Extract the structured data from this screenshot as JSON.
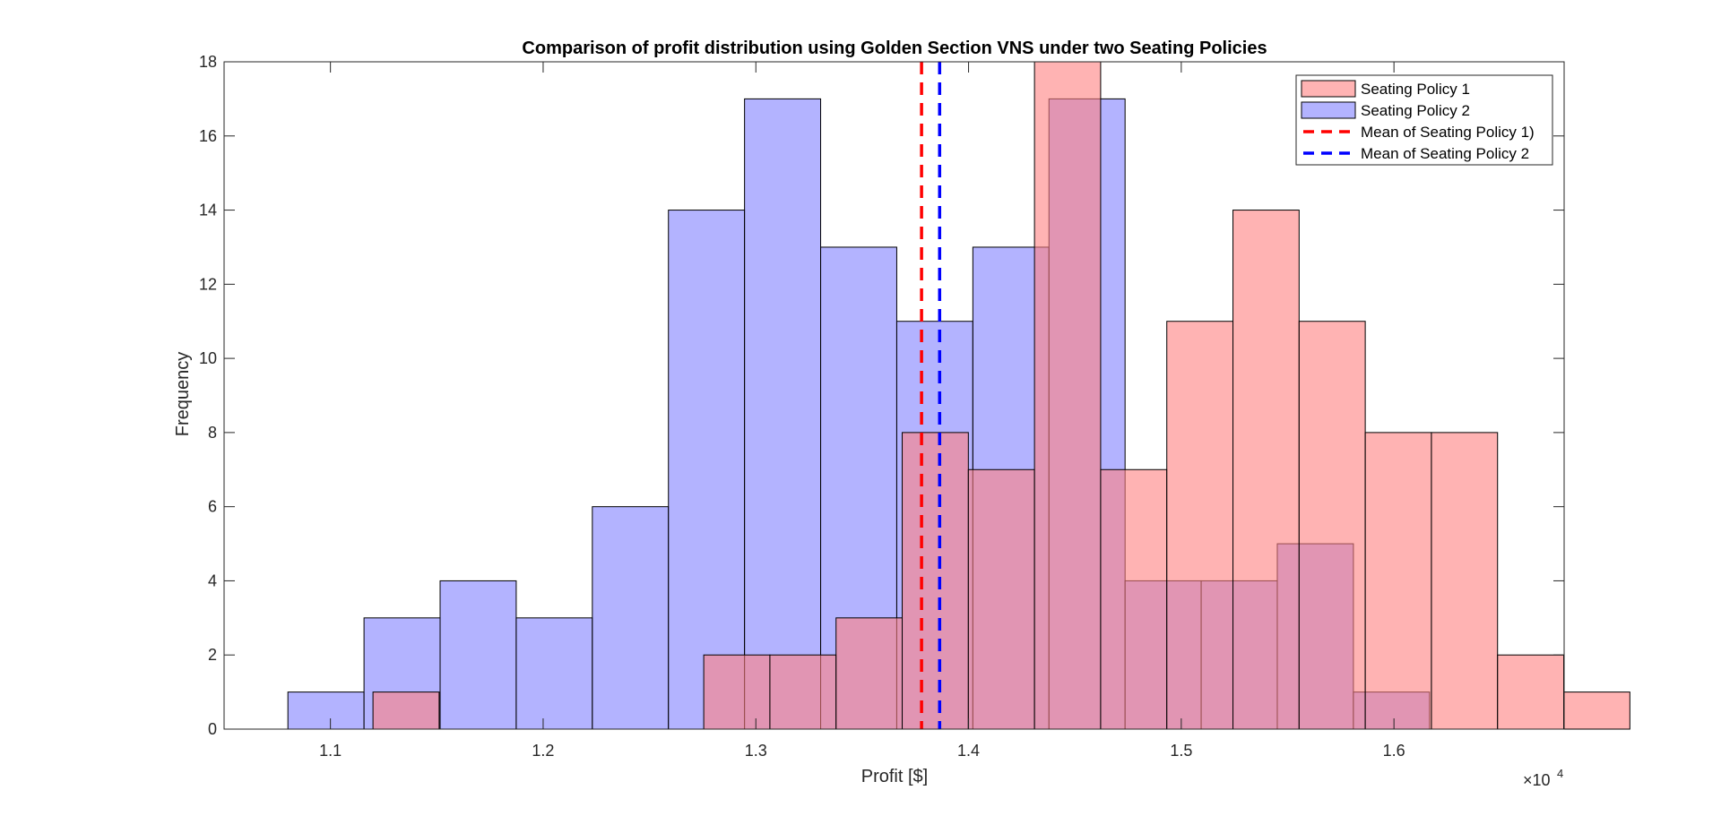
{
  "chart_data": {
    "type": "histogram",
    "title": "Comparison of profit distribution using Golden Section VNS under two Seating Policies",
    "xlabel": "Profit [$]",
    "ylabel": "Frequency",
    "x_exponent_label": "×10",
    "x_exponent_power": "4",
    "xlim": [
      1.05,
      1.68
    ],
    "ylim": [
      0,
      18
    ],
    "xticks": [
      1.1,
      1.2,
      1.3,
      1.4,
      1.5,
      1.6
    ],
    "yticks": [
      0,
      2,
      4,
      6,
      8,
      10,
      12,
      14,
      16,
      18
    ],
    "grid": false,
    "legend_position": "top-right",
    "series": [
      {
        "name": "Seating Policy 1",
        "color": "#ff8080",
        "bin_start": 1.12,
        "bin_width": 0.0311,
        "counts": [
          1,
          0,
          0,
          0,
          0,
          2,
          2,
          3,
          8,
          7,
          18,
          7,
          11,
          14,
          11,
          8,
          8,
          2,
          1,
          0
        ],
        "mean": 1.3779
      },
      {
        "name": "Seating Policy 2",
        "color": "#8080ff",
        "bin_start": 1.08,
        "bin_width": 0.03578,
        "counts": [
          1,
          3,
          4,
          3,
          6,
          14,
          17,
          13,
          11,
          13,
          17,
          4,
          4,
          5,
          1
        ],
        "mean": 1.3864
      }
    ],
    "legend": [
      "Seating Policy 1",
      "Seating Policy 2",
      "Mean of Seating Policy 1)",
      "Mean of Seating Policy 2"
    ],
    "mean_lines": [
      {
        "value": 1.3779,
        "color": "#ff0000"
      },
      {
        "value": 1.3864,
        "color": "#0000ff"
      }
    ]
  }
}
